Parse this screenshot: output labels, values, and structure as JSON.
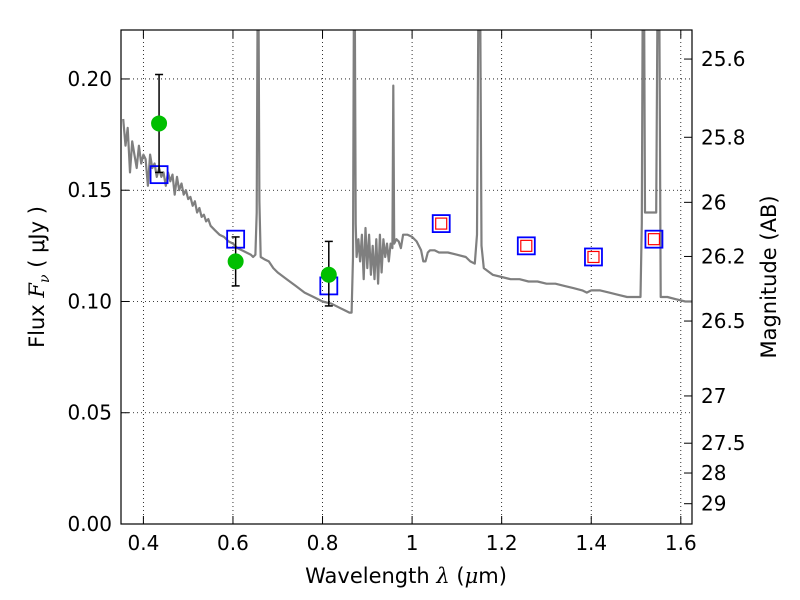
{
  "chart_data": {
    "type": "scatter",
    "xlabel_text": "Wavelength",
    "xlabel_symbol": "λ",
    "xlabel_unit_open": "(",
    "xlabel_unit_mu": "μ",
    "xlabel_unit_rest": "m)",
    "ylabel_text": "Flux",
    "ylabel_symbol": "F",
    "ylabel_subscript": "ν",
    "ylabel_unit": "( μJy )",
    "y2label": "Magnitude (AB)",
    "xlim": [
      0.35,
      1.625
    ],
    "ylim": [
      0.0,
      0.222
    ],
    "grid": true,
    "x_ticks": [
      {
        "value": 0.4,
        "label": "0.4"
      },
      {
        "value": 0.6,
        "label": "0.6"
      },
      {
        "value": 0.8,
        "label": "0.8"
      },
      {
        "value": 1.0,
        "label": "1"
      },
      {
        "value": 1.2,
        "label": "1.2"
      },
      {
        "value": 1.4,
        "label": "1.4"
      },
      {
        "value": 1.6,
        "label": "1.6"
      }
    ],
    "y_ticks": [
      {
        "value": 0.0,
        "label": "0.00"
      },
      {
        "value": 0.05,
        "label": "0.05"
      },
      {
        "value": 0.1,
        "label": "0.10"
      },
      {
        "value": 0.15,
        "label": "0.15"
      },
      {
        "value": 0.2,
        "label": "0.20"
      }
    ],
    "y2_ticks": [
      {
        "value": 25.6,
        "label": "25.6"
      },
      {
        "value": 25.8,
        "label": "25.8"
      },
      {
        "value": 26.0,
        "label": "26"
      },
      {
        "value": 26.2,
        "label": "26.2"
      },
      {
        "value": 26.5,
        "label": "26.5"
      },
      {
        "value": 27.0,
        "label": "27"
      },
      {
        "value": 27.5,
        "label": "27.5"
      },
      {
        "value": 28.0,
        "label": "28"
      },
      {
        "value": 29.0,
        "label": "29"
      }
    ],
    "observed": [
      {
        "x": 0.435,
        "y": 0.18,
        "err_low": 0.022,
        "err_high": 0.022
      },
      {
        "x": 0.606,
        "y": 0.118,
        "err_low": 0.011,
        "err_high": 0.011
      },
      {
        "x": 0.814,
        "y": 0.112,
        "err_low": 0.014,
        "err_high": 0.015
      }
    ],
    "model_blue": [
      {
        "x": 0.435,
        "y": 0.157
      },
      {
        "x": 0.606,
        "y": 0.128
      },
      {
        "x": 0.814,
        "y": 0.107
      },
      {
        "x": 1.065,
        "y": 0.135
      },
      {
        "x": 1.255,
        "y": 0.125
      },
      {
        "x": 1.405,
        "y": 0.12
      },
      {
        "x": 1.54,
        "y": 0.128
      }
    ],
    "model_red": [
      {
        "x": 1.065,
        "y": 0.135
      },
      {
        "x": 1.255,
        "y": 0.125
      },
      {
        "x": 1.405,
        "y": 0.12
      },
      {
        "x": 1.54,
        "y": 0.128
      }
    ],
    "sed": [
      [
        0.355,
        0.182
      ],
      [
        0.36,
        0.17
      ],
      [
        0.365,
        0.178
      ],
      [
        0.37,
        0.158
      ],
      [
        0.375,
        0.172
      ],
      [
        0.38,
        0.166
      ],
      [
        0.385,
        0.16
      ],
      [
        0.39,
        0.17
      ],
      [
        0.395,
        0.162
      ],
      [
        0.4,
        0.166
      ],
      [
        0.405,
        0.164
      ],
      [
        0.41,
        0.152
      ],
      [
        0.415,
        0.166
      ],
      [
        0.42,
        0.16
      ],
      [
        0.425,
        0.162
      ],
      [
        0.43,
        0.156
      ],
      [
        0.435,
        0.16
      ],
      [
        0.44,
        0.156
      ],
      [
        0.445,
        0.158
      ],
      [
        0.45,
        0.152
      ],
      [
        0.455,
        0.158
      ],
      [
        0.46,
        0.154
      ],
      [
        0.465,
        0.157
      ],
      [
        0.47,
        0.148
      ],
      [
        0.475,
        0.156
      ],
      [
        0.48,
        0.15
      ],
      [
        0.485,
        0.153
      ],
      [
        0.49,
        0.148
      ],
      [
        0.495,
        0.15
      ],
      [
        0.5,
        0.146
      ],
      [
        0.505,
        0.147
      ],
      [
        0.51,
        0.143
      ],
      [
        0.515,
        0.145
      ],
      [
        0.52,
        0.14
      ],
      [
        0.525,
        0.142
      ],
      [
        0.53,
        0.138
      ],
      [
        0.535,
        0.139
      ],
      [
        0.54,
        0.136
      ],
      [
        0.545,
        0.137
      ],
      [
        0.55,
        0.134
      ],
      [
        0.56,
        0.132
      ],
      [
        0.57,
        0.13
      ],
      [
        0.58,
        0.129
      ],
      [
        0.59,
        0.127
      ],
      [
        0.6,
        0.126
      ],
      [
        0.61,
        0.124
      ],
      [
        0.62,
        0.123
      ],
      [
        0.63,
        0.122
      ],
      [
        0.64,
        0.121
      ],
      [
        0.645,
        0.12
      ],
      [
        0.65,
        0.121
      ],
      [
        0.653,
        0.14
      ],
      [
        0.655,
        0.235
      ],
      [
        0.657,
        0.235
      ],
      [
        0.659,
        0.145
      ],
      [
        0.662,
        0.12
      ],
      [
        0.67,
        0.119
      ],
      [
        0.68,
        0.118
      ],
      [
        0.69,
        0.115
      ],
      [
        0.7,
        0.113
      ],
      [
        0.72,
        0.11
      ],
      [
        0.74,
        0.107
      ],
      [
        0.76,
        0.104
      ],
      [
        0.78,
        0.102
      ],
      [
        0.8,
        0.1
      ],
      [
        0.82,
        0.099
      ],
      [
        0.84,
        0.097
      ],
      [
        0.85,
        0.096
      ],
      [
        0.86,
        0.095
      ],
      [
        0.865,
        0.095
      ],
      [
        0.868,
        0.12
      ],
      [
        0.87,
        0.235
      ],
      [
        0.872,
        0.235
      ],
      [
        0.874,
        0.135
      ],
      [
        0.876,
        0.12
      ],
      [
        0.88,
        0.128
      ],
      [
        0.884,
        0.118
      ],
      [
        0.888,
        0.13
      ],
      [
        0.892,
        0.11
      ],
      [
        0.896,
        0.133
      ],
      [
        0.9,
        0.115
      ],
      [
        0.904,
        0.13
      ],
      [
        0.908,
        0.112
      ],
      [
        0.912,
        0.125
      ],
      [
        0.916,
        0.11
      ],
      [
        0.92,
        0.128
      ],
      [
        0.924,
        0.108
      ],
      [
        0.928,
        0.13
      ],
      [
        0.932,
        0.113
      ],
      [
        0.936,
        0.128
      ],
      [
        0.94,
        0.12
      ],
      [
        0.944,
        0.126
      ],
      [
        0.948,
        0.118
      ],
      [
        0.952,
        0.126
      ],
      [
        0.956,
        0.124
      ],
      [
        0.958,
        0.197
      ],
      [
        0.96,
        0.126
      ],
      [
        0.965,
        0.128
      ],
      [
        0.97,
        0.127
      ],
      [
        0.975,
        0.124
      ],
      [
        0.98,
        0.13
      ],
      [
        0.99,
        0.13
      ],
      [
        1.0,
        0.129
      ],
      [
        1.01,
        0.127
      ],
      [
        1.02,
        0.123
      ],
      [
        1.025,
        0.118
      ],
      [
        1.03,
        0.118
      ],
      [
        1.035,
        0.122
      ],
      [
        1.04,
        0.123
      ],
      [
        1.05,
        0.123
      ],
      [
        1.06,
        0.122
      ],
      [
        1.08,
        0.122
      ],
      [
        1.1,
        0.121
      ],
      [
        1.12,
        0.12
      ],
      [
        1.13,
        0.118
      ],
      [
        1.14,
        0.117
      ],
      [
        1.145,
        0.13
      ],
      [
        1.148,
        0.235
      ],
      [
        1.152,
        0.235
      ],
      [
        1.155,
        0.125
      ],
      [
        1.16,
        0.115
      ],
      [
        1.18,
        0.112
      ],
      [
        1.2,
        0.111
      ],
      [
        1.22,
        0.11
      ],
      [
        1.24,
        0.11
      ],
      [
        1.26,
        0.109
      ],
      [
        1.28,
        0.109
      ],
      [
        1.3,
        0.108
      ],
      [
        1.32,
        0.108
      ],
      [
        1.34,
        0.107
      ],
      [
        1.36,
        0.106
      ],
      [
        1.38,
        0.105
      ],
      [
        1.39,
        0.104
      ],
      [
        1.4,
        0.105
      ],
      [
        1.42,
        0.105
      ],
      [
        1.44,
        0.104
      ],
      [
        1.46,
        0.103
      ],
      [
        1.48,
        0.102
      ],
      [
        1.5,
        0.102
      ],
      [
        1.51,
        0.102
      ],
      [
        1.513,
        0.135
      ],
      [
        1.515,
        0.235
      ],
      [
        1.518,
        0.235
      ],
      [
        1.52,
        0.14
      ],
      [
        1.525,
        0.14
      ],
      [
        1.53,
        0.14
      ],
      [
        1.54,
        0.14
      ],
      [
        1.545,
        0.14
      ],
      [
        1.548,
        0.235
      ],
      [
        1.552,
        0.235
      ],
      [
        1.555,
        0.102
      ],
      [
        1.57,
        0.102
      ],
      [
        1.59,
        0.101
      ],
      [
        1.61,
        0.1
      ],
      [
        1.625,
        0.1
      ]
    ],
    "colors": {
      "sed_line": "#7f7f7f",
      "observed_marker": "#00bf00",
      "error_bar": "#000000",
      "blue_square": "#0000ff",
      "red_square": "#ff0000",
      "grid": "#000000"
    }
  }
}
